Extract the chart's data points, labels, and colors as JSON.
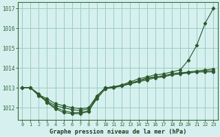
{
  "title": "Graphe pression niveau de la mer (hPa)",
  "background_color": "#d6f0f0",
  "grid_color": "#99ccbb",
  "line_color": "#2d5a2d",
  "x_ticks": [
    0,
    1,
    2,
    3,
    4,
    5,
    6,
    7,
    8,
    9,
    10,
    11,
    12,
    13,
    14,
    15,
    16,
    17,
    18,
    19,
    20,
    21,
    22,
    23
  ],
  "ylim": [
    1011.4,
    1017.3
  ],
  "yticks": [
    1012,
    1013,
    1014,
    1015,
    1016,
    1017
  ],
  "series": [
    [
      1013.0,
      1013.0,
      1012.65,
      1012.45,
      1012.2,
      1012.1,
      1012.0,
      1011.95,
      1012.0,
      1012.6,
      1013.0,
      1013.05,
      1013.1,
      1013.2,
      1013.35,
      1013.45,
      1013.55,
      1013.6,
      1013.7,
      1013.75,
      1013.75,
      1013.8,
      1013.8,
      1013.8
    ],
    [
      1013.0,
      1013.0,
      1012.6,
      1012.3,
      1012.0,
      1011.85,
      1011.75,
      1011.75,
      1011.85,
      1012.45,
      1012.95,
      1013.0,
      1013.1,
      1013.2,
      1013.3,
      1013.4,
      1013.5,
      1013.55,
      1013.65,
      1013.7,
      1013.75,
      1013.8,
      1013.85,
      1013.85
    ],
    [
      1013.0,
      1013.0,
      1012.65,
      1012.35,
      1012.1,
      1012.0,
      1011.9,
      1011.85,
      1011.95,
      1012.55,
      1013.0,
      1013.05,
      1013.1,
      1013.25,
      1013.35,
      1013.5,
      1013.55,
      1013.6,
      1013.7,
      1013.75,
      1013.8,
      1013.85,
      1013.9,
      1013.95
    ],
    [
      1013.0,
      1013.0,
      1012.7,
      1012.25,
      1011.95,
      1011.75,
      1011.7,
      1011.7,
      1011.8,
      1012.55,
      1013.0,
      1013.05,
      1013.15,
      1013.3,
      1013.45,
      1013.55,
      1013.65,
      1013.7,
      1013.8,
      1013.9,
      1014.4,
      1015.15,
      1016.25,
      1017.0
    ]
  ]
}
